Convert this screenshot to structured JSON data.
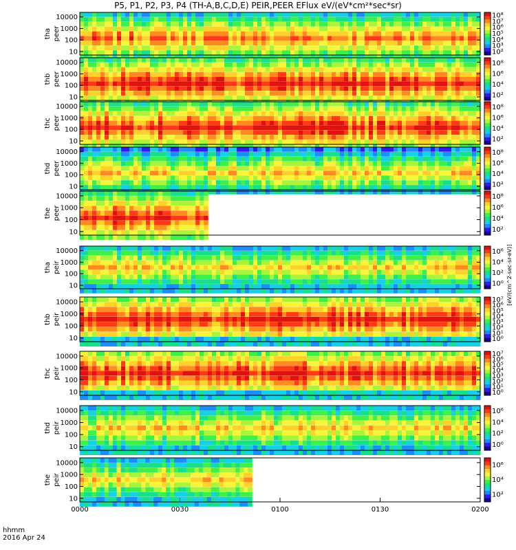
{
  "title": "P5, P1, P2, P3, P4 (TH-A,B,C,D,E) PEIR,PEER EFlux eV/(eV*cm²*sec*sr)",
  "x_axis": {
    "label_line1": "hhmm",
    "label_line2": "2016 Apr 24",
    "ticks": [
      "0000",
      "0030",
      "0100",
      "0130",
      "0200"
    ]
  },
  "colorbar_unit_text": "[eV/(cm^2-sec-sr-eV)]",
  "chart_data": [
    {
      "type": "heatmap",
      "probe": "tha",
      "species": "peer",
      "ylabel": [
        "tha",
        "peer"
      ],
      "yticks": [
        "10",
        "100",
        "1000",
        "10000"
      ],
      "cbar_ticks": [
        "10²",
        "10³",
        "10⁴",
        "10⁵",
        "10⁶",
        "10⁷",
        "10⁸"
      ],
      "data_start_frac": 0.0,
      "data_end_frac": 1.0,
      "band_peak": "yellow-red"
    },
    {
      "type": "heatmap",
      "probe": "thb",
      "species": "peer",
      "ylabel": [
        "thb",
        "peer"
      ],
      "yticks": [
        "10",
        "100",
        "1000",
        "10000"
      ],
      "cbar_ticks": [
        "10²",
        "10⁴",
        "10⁶",
        "10⁸"
      ],
      "data_start_frac": 0.0,
      "data_end_frac": 1.0,
      "band_peak": "red"
    },
    {
      "type": "heatmap",
      "probe": "thc",
      "species": "peer",
      "ylabel": [
        "thc",
        "peer"
      ],
      "yticks": [
        "10",
        "100",
        "1000",
        "10000"
      ],
      "cbar_ticks": [
        "10²",
        "10⁴",
        "10⁶",
        "10⁸"
      ],
      "data_start_frac": 0.0,
      "data_end_frac": 1.0,
      "band_peak": "red"
    },
    {
      "type": "heatmap",
      "probe": "thd",
      "species": "peer",
      "ylabel": [
        "thd",
        "peer"
      ],
      "yticks": [
        "10",
        "100",
        "1000",
        "10000"
      ],
      "cbar_ticks": [
        "10²",
        "10⁴",
        "10⁶",
        "10⁸"
      ],
      "data_start_frac": 0.0,
      "data_end_frac": 1.0,
      "band_peak": "yellow"
    },
    {
      "type": "heatmap",
      "probe": "the",
      "species": "peer",
      "ylabel": [
        "the",
        "peer"
      ],
      "yticks": [
        "10",
        "100",
        "1000",
        "10000"
      ],
      "cbar_ticks": [
        "10²",
        "10⁴",
        "10⁶",
        "10⁸"
      ],
      "data_start_frac": 0.0,
      "data_end_frac": 0.32,
      "band_peak": "red"
    },
    {
      "type": "heatmap",
      "probe": "tha",
      "species": "peir",
      "ylabel": [
        "tha",
        "peir"
      ],
      "yticks": [
        "10",
        "100",
        "1000",
        "10000"
      ],
      "cbar_ticks": [
        "10⁰",
        "10²",
        "10⁴",
        "10⁶"
      ],
      "data_start_frac": 0.0,
      "data_end_frac": 1.0,
      "band_peak": "yellow"
    },
    {
      "type": "heatmap",
      "probe": "thb",
      "species": "peir",
      "ylabel": [
        "thb",
        "peir"
      ],
      "yticks": [
        "10",
        "100",
        "1000",
        "10000"
      ],
      "cbar_ticks": [
        "10⁰",
        "10¹",
        "10²",
        "10³",
        "10⁴",
        "10⁵",
        "10⁶",
        "10⁷"
      ],
      "data_start_frac": 0.0,
      "data_end_frac": 1.0,
      "band_peak": "red"
    },
    {
      "type": "heatmap",
      "probe": "thc",
      "species": "peir",
      "ylabel": [
        "thc",
        "peir"
      ],
      "yticks": [
        "10",
        "100",
        "1000",
        "10000"
      ],
      "cbar_ticks": [
        "10⁰",
        "10¹",
        "10²",
        "10³",
        "10⁴",
        "10⁵",
        "10⁶",
        "10⁷"
      ],
      "data_start_frac": 0.0,
      "data_end_frac": 1.0,
      "band_peak": "red"
    },
    {
      "type": "heatmap",
      "probe": "thd",
      "species": "peir",
      "ylabel": [
        "thd",
        "peir"
      ],
      "yticks": [
        "10",
        "100",
        "1000",
        "10000"
      ],
      "cbar_ticks": [
        "10⁰",
        "10²",
        "10⁴",
        "10⁶"
      ],
      "data_start_frac": 0.0,
      "data_end_frac": 1.0,
      "band_peak": "yellow"
    },
    {
      "type": "heatmap",
      "probe": "the",
      "species": "peir",
      "ylabel": [
        "the",
        "peir"
      ],
      "yticks": [
        "10",
        "100",
        "1000",
        "10000"
      ],
      "cbar_ticks": [
        "10²",
        "10⁴",
        "10⁶"
      ],
      "data_start_frac": 0.0,
      "data_end_frac": 0.43,
      "band_peak": "yellow"
    }
  ]
}
